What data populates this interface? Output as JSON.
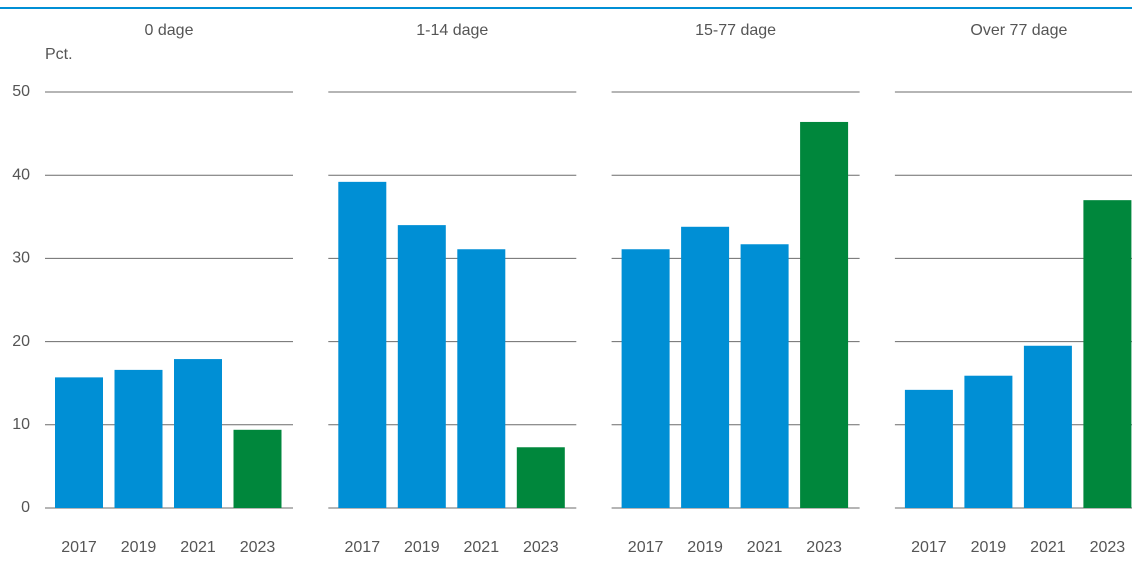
{
  "chart_data": [
    {
      "type": "bar",
      "title": "0 dage",
      "ylabel": "Pct.",
      "categories": [
        "2017",
        "2019",
        "2021",
        "2023"
      ],
      "values": [
        15.7,
        16.6,
        17.9,
        9.4
      ],
      "colors": [
        "#008fd5",
        "#008fd5",
        "#008fd5",
        "#00873c"
      ],
      "ylim": [
        0,
        50
      ],
      "yticks": [
        0,
        10,
        20,
        30,
        40,
        50
      ],
      "grid": true
    },
    {
      "type": "bar",
      "title": "1-14 dage",
      "categories": [
        "2017",
        "2019",
        "2021",
        "2023"
      ],
      "values": [
        39.2,
        34.0,
        31.1,
        7.3
      ],
      "colors": [
        "#008fd5",
        "#008fd5",
        "#008fd5",
        "#00873c"
      ],
      "ylim": [
        0,
        50
      ],
      "yticks": [
        0,
        10,
        20,
        30,
        40,
        50
      ],
      "grid": true
    },
    {
      "type": "bar",
      "title": "15-77 dage",
      "categories": [
        "2017",
        "2019",
        "2021",
        "2023"
      ],
      "values": [
        31.1,
        33.8,
        31.7,
        46.4
      ],
      "colors": [
        "#008fd5",
        "#008fd5",
        "#008fd5",
        "#00873c"
      ],
      "ylim": [
        0,
        50
      ],
      "yticks": [
        0,
        10,
        20,
        30,
        40,
        50
      ],
      "grid": true
    },
    {
      "type": "bar",
      "title": "Over 77 dage",
      "categories": [
        "2017",
        "2019",
        "2021",
        "2023"
      ],
      "values": [
        14.2,
        15.9,
        19.5,
        37.0
      ],
      "colors": [
        "#008fd5",
        "#008fd5",
        "#008fd5",
        "#00873c"
      ],
      "ylim": [
        0,
        50
      ],
      "yticks": [
        0,
        10,
        20,
        30,
        40,
        50
      ],
      "grid": true
    }
  ]
}
